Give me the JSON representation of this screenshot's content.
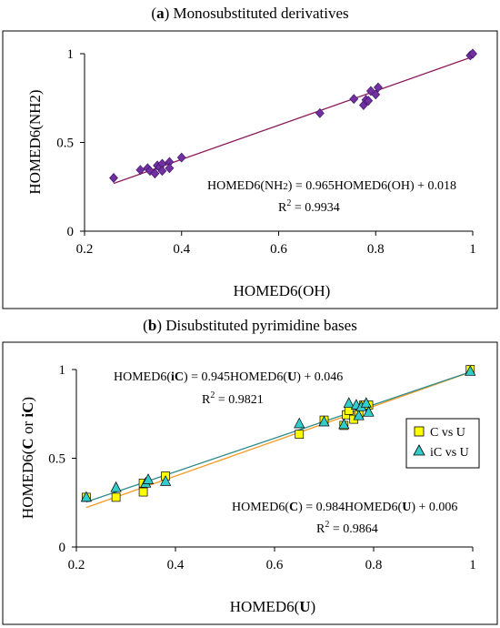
{
  "chart_data": [
    {
      "type": "scatter",
      "title_letter": "a",
      "title_rest": " Monosubstituted derivatives",
      "xlabel": "HOMED6(OH)",
      "ylabel": "HOMED6(NH2)",
      "xlim": [
        0.2,
        1
      ],
      "ylim": [
        0,
        1
      ],
      "xticks": [
        "0.2",
        "0.4",
        "0.6",
        "0.8",
        "1"
      ],
      "yticks": [
        "0",
        "0.5",
        "1"
      ],
      "grid": false,
      "series": [
        {
          "marker": "diamond",
          "color": "#7030A0",
          "x": [
            0.26,
            0.315,
            0.33,
            0.335,
            0.345,
            0.35,
            0.355,
            0.36,
            0.36,
            0.375,
            0.375,
            0.4,
            0.685,
            0.755,
            0.775,
            0.78,
            0.785,
            0.79,
            0.8,
            0.805,
            0.995,
            1.0
          ],
          "y": [
            0.3,
            0.345,
            0.355,
            0.34,
            0.325,
            0.37,
            0.36,
            0.38,
            0.34,
            0.39,
            0.355,
            0.415,
            0.665,
            0.745,
            0.71,
            0.74,
            0.735,
            0.79,
            0.77,
            0.81,
            0.99,
            1.0
          ]
        }
      ],
      "fits": [
        {
          "slope": 0.965,
          "intercept": 0.018,
          "color": "#8B1A5B",
          "x_range": [
            0.26,
            1.0
          ]
        }
      ],
      "annotations": [
        {
          "eq_before": "HOMED6(NH",
          "eq_sub": "2",
          "eq_after": ") = 0.965HOMED6(OH) + 0.018",
          "r2": " = 0.9934"
        }
      ]
    },
    {
      "type": "scatter",
      "title_letter": "b",
      "title_rest": " Disubstituted pyrimidine bases",
      "xlabel_before": "HOMED6(",
      "xlabel_bold": "U",
      "xlabel_after": ")",
      "ylabel_parts": [
        "HOMED6(",
        "C",
        " or ",
        "iC",
        ")"
      ],
      "xlim": [
        0.2,
        1
      ],
      "ylim": [
        0,
        1
      ],
      "xticks": [
        "0.2",
        "0.4",
        "0.6",
        "0.8",
        "1"
      ],
      "yticks": [
        "0",
        "0.5",
        "1"
      ],
      "grid": false,
      "legend_position": "right",
      "series": [
        {
          "name": "C vs U",
          "marker": "square",
          "color": "#FFFF00",
          "x": [
            0.22,
            0.28,
            0.335,
            0.335,
            0.38,
            0.65,
            0.7,
            0.74,
            0.745,
            0.75,
            0.76,
            0.77,
            0.78,
            0.79,
            0.995
          ],
          "y": [
            0.28,
            0.28,
            0.36,
            0.31,
            0.4,
            0.635,
            0.715,
            0.685,
            0.745,
            0.77,
            0.72,
            0.75,
            0.8,
            0.8,
            1.0
          ]
        },
        {
          "name": "iC vs U",
          "marker": "triangle",
          "color": "#33CCCC",
          "x": [
            0.22,
            0.28,
            0.34,
            0.345,
            0.38,
            0.65,
            0.7,
            0.74,
            0.75,
            0.765,
            0.77,
            0.775,
            0.785,
            0.79,
            0.995
          ],
          "y": [
            0.28,
            0.335,
            0.36,
            0.38,
            0.37,
            0.695,
            0.705,
            0.69,
            0.81,
            0.8,
            0.74,
            0.79,
            0.81,
            0.76,
            0.99
          ]
        }
      ],
      "fits": [
        {
          "slope": 0.984,
          "intercept": 0.006,
          "color": "#F59A23",
          "x_range": [
            0.22,
            1.0
          ]
        },
        {
          "slope": 0.945,
          "intercept": 0.046,
          "color": "#2E8B8B",
          "x_range": [
            0.22,
            1.0
          ]
        }
      ],
      "annotations": [
        {
          "label": "iC",
          "eq_before": "HOMED6(",
          "eq_bold1": "iC",
          "eq_mid": ") = 0.945HOMED6(",
          "eq_bold2": "U",
          "eq_after": ") + 0.046",
          "r2": " = 0.9821"
        },
        {
          "label": "C",
          "eq_before": "HOMED6(",
          "eq_bold1": "C",
          "eq_mid": ") = 0.984HOMED6(",
          "eq_bold2": "U",
          "eq_after": ") + 0.006",
          "r2": " = 0.9864"
        }
      ]
    }
  ],
  "r2_label": "R",
  "r2_sup": "2"
}
